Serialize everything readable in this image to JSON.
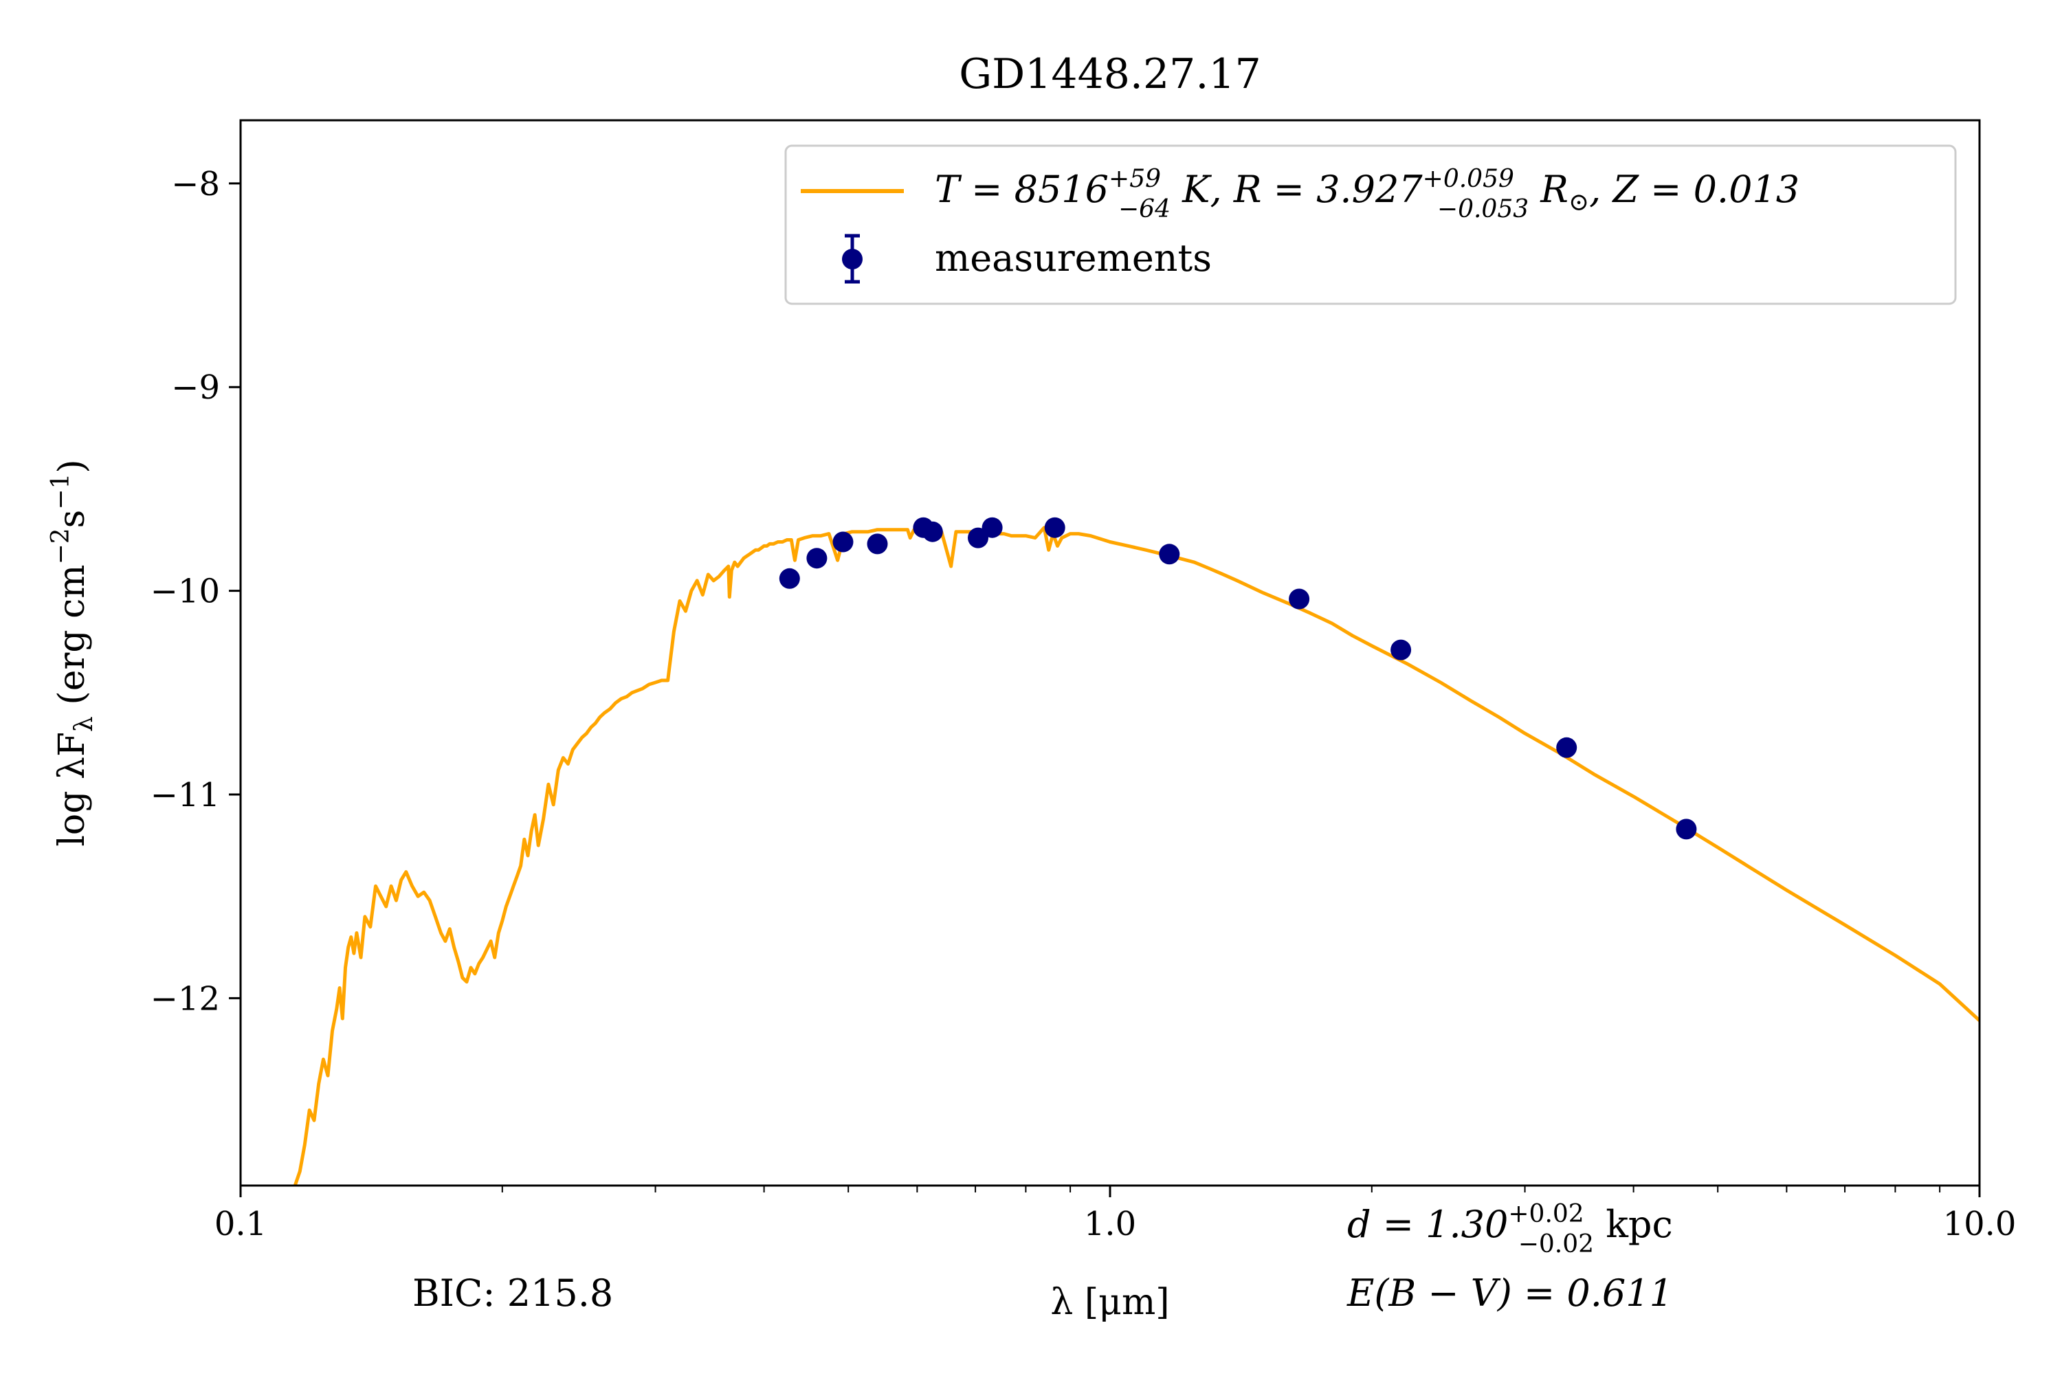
{
  "chart_data": {
    "type": "line",
    "title": "GD1448.27.17",
    "xlabel": "λ [μm]",
    "ylabel_parts": {
      "pre": "log λF",
      "sub": "λ",
      "mid": " (erg cm",
      "sup1": "−2",
      "mid2": "s",
      "sup2": "−1",
      "post": ")"
    },
    "x_scale": "log",
    "xlim": [
      0.1,
      10.0
    ],
    "ylim": [
      -12.92,
      -7.69
    ],
    "x_ticks": [
      0.1,
      1.0,
      10.0
    ],
    "x_tick_labels": [
      "0.1",
      "1.0",
      "10.0"
    ],
    "y_ticks": [
      -8,
      -9,
      -10,
      -11,
      -12
    ],
    "y_tick_labels": [
      "−8",
      "−9",
      "−10",
      "−11",
      "−12"
    ],
    "grid": false,
    "legend_position": "top-right",
    "legend": {
      "model": {
        "color": "#ffa500",
        "T_prefix": "T = 8516",
        "T_sup": "+59",
        "T_sub": "−64",
        "R_prefix": " K, R = 3.927",
        "R_sup": "+0.059",
        "R_sub": "−0.053",
        "R_suffix": " R",
        "R_odot": "⊙",
        "Z_text": ", Z = 0.013"
      },
      "measurements": {
        "label": "measurements",
        "color": "#000080"
      }
    },
    "series": [
      {
        "name": "model",
        "color": "#ffa500",
        "x": [
          0.1155,
          0.117,
          0.1185,
          0.12,
          0.1215,
          0.123,
          0.1245,
          0.126,
          0.1275,
          0.129,
          0.13,
          0.131,
          0.132,
          0.133,
          0.134,
          0.135,
          0.136,
          0.1375,
          0.139,
          0.141,
          0.143,
          0.145,
          0.147,
          0.149,
          0.151,
          0.153,
          0.155,
          0.1575,
          0.16,
          0.1625,
          0.165,
          0.1675,
          0.17,
          0.172,
          0.174,
          0.176,
          0.178,
          0.18,
          0.182,
          0.184,
          0.186,
          0.188,
          0.19,
          0.192,
          0.194,
          0.196,
          0.198,
          0.2,
          0.202,
          0.204,
          0.206,
          0.208,
          0.21,
          0.212,
          0.214,
          0.216,
          0.218,
          0.22,
          0.223,
          0.226,
          0.229,
          0.232,
          0.235,
          0.238,
          0.241,
          0.244,
          0.247,
          0.25,
          0.253,
          0.256,
          0.259,
          0.262,
          0.266,
          0.27,
          0.274,
          0.278,
          0.282,
          0.286,
          0.29,
          0.295,
          0.3,
          0.305,
          0.31,
          0.315,
          0.32,
          0.325,
          0.33,
          0.335,
          0.34,
          0.345,
          0.35,
          0.355,
          0.36,
          0.364,
          0.365,
          0.367,
          0.37,
          0.373,
          0.376,
          0.379,
          0.382,
          0.385,
          0.388,
          0.391,
          0.394,
          0.397,
          0.4,
          0.403,
          0.406,
          0.41,
          0.415,
          0.42,
          0.425,
          0.43,
          0.434,
          0.438,
          0.445,
          0.455,
          0.465,
          0.475,
          0.486,
          0.495,
          0.505,
          0.515,
          0.527,
          0.54,
          0.555,
          0.57,
          0.585,
          0.589,
          0.595,
          0.61,
          0.625,
          0.64,
          0.6563,
          0.665,
          0.68,
          0.695,
          0.71,
          0.725,
          0.74,
          0.755,
          0.77,
          0.785,
          0.8,
          0.82,
          0.84,
          0.85,
          0.86,
          0.87,
          0.88,
          0.9,
          0.92,
          0.95,
          1.0,
          1.05,
          1.1,
          1.15,
          1.2,
          1.25,
          1.3,
          1.35,
          1.4,
          1.5,
          1.6,
          1.7,
          1.8,
          1.9,
          2.0,
          2.2,
          2.4,
          2.6,
          2.8,
          3.0,
          3.3,
          3.6,
          4.0,
          4.5,
          5.0,
          5.5,
          6.0,
          7.0,
          8.0,
          9.0,
          10.0
        ],
        "y": [
          -12.92,
          -12.85,
          -12.72,
          -12.55,
          -12.6,
          -12.42,
          -12.3,
          -12.38,
          -12.16,
          -12.05,
          -11.95,
          -12.1,
          -11.85,
          -11.75,
          -11.7,
          -11.78,
          -11.68,
          -11.8,
          -11.6,
          -11.65,
          -11.45,
          -11.5,
          -11.55,
          -11.45,
          -11.52,
          -11.42,
          -11.38,
          -11.45,
          -11.5,
          -11.48,
          -11.52,
          -11.6,
          -11.68,
          -11.72,
          -11.66,
          -11.75,
          -11.82,
          -11.9,
          -11.92,
          -11.85,
          -11.88,
          -11.83,
          -11.8,
          -11.76,
          -11.72,
          -11.8,
          -11.68,
          -11.62,
          -11.55,
          -11.5,
          -11.45,
          -11.4,
          -11.35,
          -11.22,
          -11.3,
          -11.18,
          -11.1,
          -11.25,
          -11.12,
          -10.95,
          -11.05,
          -10.88,
          -10.82,
          -10.85,
          -10.78,
          -10.75,
          -10.72,
          -10.7,
          -10.67,
          -10.65,
          -10.62,
          -10.6,
          -10.58,
          -10.55,
          -10.53,
          -10.52,
          -10.5,
          -10.49,
          -10.48,
          -10.46,
          -10.45,
          -10.44,
          -10.44,
          -10.2,
          -10.05,
          -10.1,
          -10.0,
          -9.95,
          -10.02,
          -9.92,
          -9.95,
          -9.93,
          -9.9,
          -9.88,
          -10.03,
          -9.9,
          -9.86,
          -9.88,
          -9.86,
          -9.84,
          -9.83,
          -9.82,
          -9.81,
          -9.8,
          -9.8,
          -9.79,
          -9.78,
          -9.78,
          -9.77,
          -9.77,
          -9.76,
          -9.76,
          -9.75,
          -9.75,
          -9.85,
          -9.75,
          -9.74,
          -9.73,
          -9.73,
          -9.72,
          -9.85,
          -9.72,
          -9.71,
          -9.71,
          -9.71,
          -9.7,
          -9.7,
          -9.7,
          -9.7,
          -9.74,
          -9.7,
          -9.7,
          -9.7,
          -9.71,
          -9.88,
          -9.71,
          -9.71,
          -9.71,
          -9.71,
          -9.72,
          -9.72,
          -9.72,
          -9.73,
          -9.73,
          -9.73,
          -9.74,
          -9.69,
          -9.8,
          -9.72,
          -9.78,
          -9.74,
          -9.72,
          -9.72,
          -9.73,
          -9.76,
          -9.78,
          -9.8,
          -9.82,
          -9.84,
          -9.86,
          -9.89,
          -9.92,
          -9.95,
          -10.01,
          -10.06,
          -10.11,
          -10.16,
          -10.22,
          -10.27,
          -10.36,
          -10.45,
          -10.54,
          -10.62,
          -10.7,
          -10.8,
          -10.9,
          -11.01,
          -11.14,
          -11.26,
          -11.37,
          -11.47,
          -11.64,
          -11.79,
          -11.93,
          -12.11
        ]
      },
      {
        "name": "measurements",
        "color": "#000080",
        "x": [
          0.428,
          0.46,
          0.493,
          0.54,
          0.61,
          0.625,
          0.705,
          0.732,
          0.864,
          1.17,
          1.65,
          2.16,
          3.35,
          4.6
        ],
        "y": [
          -9.94,
          -9.84,
          -9.76,
          -9.77,
          -9.69,
          -9.71,
          -9.74,
          -9.69,
          -9.69,
          -9.82,
          -10.04,
          -10.29,
          -10.77,
          -11.17
        ]
      }
    ],
    "annotations": {
      "bic": "BIC: 215.8",
      "d_prefix": "d = 1.30",
      "d_sup": "+0.02",
      "d_sub": "−0.02",
      "d_unit": " kpc",
      "ebv": "E(B − V) = 0.611"
    }
  }
}
